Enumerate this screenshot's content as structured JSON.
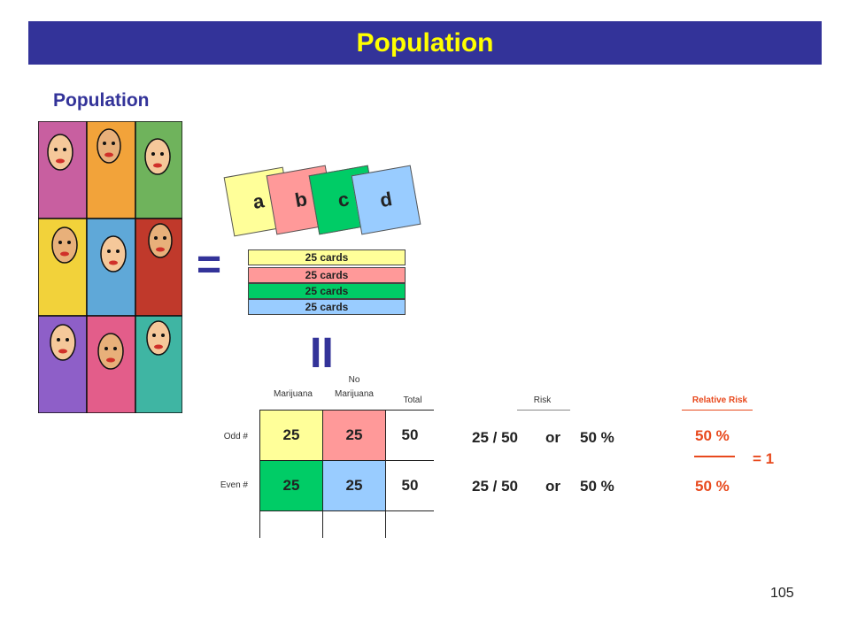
{
  "title": "Population",
  "subtitle": "Population",
  "cards": [
    {
      "letter": "a",
      "color": "#ffff99"
    },
    {
      "letter": "b",
      "color": "#ff9999"
    },
    {
      "letter": "c",
      "color": "#00cc66"
    },
    {
      "letter": "d",
      "color": "#99ccff"
    }
  ],
  "stack": [
    {
      "label": "25 cards",
      "color": "#ffff99"
    },
    {
      "label": "25 cards",
      "color": "#ff9999"
    },
    {
      "label": "25 cards",
      "color": "#00cc66"
    },
    {
      "label": "25 cards",
      "color": "#99ccff"
    }
  ],
  "table": {
    "columns": {
      "marijuana": "Marijuana",
      "no_marijuana_line1": "No",
      "no_marijuana_line2": "Marijuana",
      "total": "Total",
      "risk": "Risk",
      "relative_risk": "Relative Risk"
    },
    "rows": [
      {
        "label": "Odd #",
        "a": "25",
        "b": "25",
        "total": "50",
        "risk_num": "25 / 50",
        "or": "or",
        "risk_pct": "50 %"
      },
      {
        "label": "Even #",
        "a": "25",
        "b": "25",
        "total": "50",
        "risk_num": "25 / 50",
        "or": "or",
        "risk_pct": "50 %"
      }
    ],
    "relative_risk": {
      "numerator": "50 %",
      "denominator": "50 %",
      "result": "= 1"
    }
  },
  "symbols": {
    "equals": "=",
    "vertical_equals": "II"
  },
  "page_number": "105",
  "colors": {
    "title_bg": "#333399",
    "title_text": "#ffff00",
    "accent": "#e8491d",
    "cell_a": "#ffff99",
    "cell_b": "#00cc66",
    "cell_c": "#99ccff"
  }
}
